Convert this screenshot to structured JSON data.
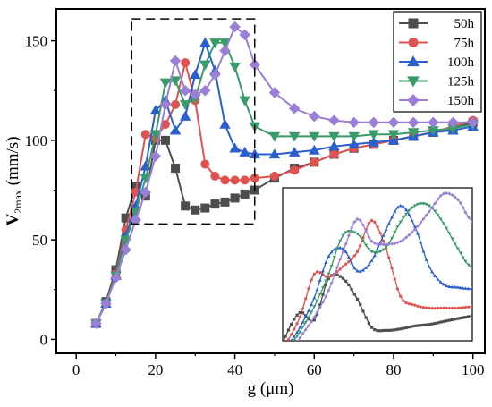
{
  "chart_data": {
    "type": "line",
    "xlabel": "g (μm)",
    "ylabel_main": "V",
    "ylabel_sub": "2max",
    "ylabel_unit": " (mm/s)",
    "xlim": [
      -5,
      103
    ],
    "ylim": [
      -7,
      166
    ],
    "xticks": [
      0,
      20,
      40,
      60,
      80,
      100
    ],
    "yticks": [
      0,
      50,
      100,
      150
    ],
    "grid": false,
    "legend_position": "top-right",
    "series": [
      {
        "name": "50h",
        "color": "#4d4d4d",
        "marker": "square",
        "points": [
          [
            5,
            8
          ],
          [
            7.5,
            19
          ],
          [
            10,
            35
          ],
          [
            12.5,
            61
          ],
          [
            15,
            77
          ],
          [
            17.5,
            72
          ],
          [
            20,
            100
          ],
          [
            22.5,
            100
          ],
          [
            25,
            86
          ],
          [
            27.5,
            67
          ],
          [
            30,
            65
          ],
          [
            32.5,
            66
          ],
          [
            35,
            68
          ],
          [
            37.5,
            69
          ],
          [
            40,
            71
          ],
          [
            42.5,
            73
          ],
          [
            45,
            75
          ],
          [
            50,
            81
          ],
          [
            55,
            86
          ],
          [
            60,
            89
          ],
          [
            65,
            93
          ],
          [
            70,
            96
          ],
          [
            75,
            98
          ],
          [
            80,
            100
          ],
          [
            85,
            102
          ],
          [
            90,
            104
          ],
          [
            95,
            106
          ],
          [
            100,
            109
          ]
        ]
      },
      {
        "name": "75h",
        "color": "#e0524f",
        "marker": "circle",
        "points": [
          [
            5,
            8
          ],
          [
            7.5,
            18
          ],
          [
            10,
            33
          ],
          [
            12.5,
            55
          ],
          [
            15,
            74
          ],
          [
            17.5,
            103
          ],
          [
            20,
            101
          ],
          [
            22.5,
            108
          ],
          [
            25,
            118
          ],
          [
            27.5,
            139
          ],
          [
            30,
            120
          ],
          [
            32.5,
            88
          ],
          [
            35,
            82
          ],
          [
            37.5,
            80
          ],
          [
            40,
            80
          ],
          [
            42.5,
            80
          ],
          [
            45,
            81
          ],
          [
            50,
            82
          ],
          [
            55,
            85
          ],
          [
            60,
            89
          ],
          [
            65,
            93
          ],
          [
            70,
            96
          ],
          [
            75,
            98
          ],
          [
            80,
            100
          ],
          [
            85,
            102
          ],
          [
            90,
            104
          ],
          [
            95,
            107
          ],
          [
            100,
            110
          ]
        ]
      },
      {
        "name": "100h",
        "color": "#2b5fcf",
        "marker": "triangle-up",
        "points": [
          [
            5,
            8
          ],
          [
            7.5,
            18
          ],
          [
            10,
            32
          ],
          [
            12.5,
            52
          ],
          [
            15,
            67
          ],
          [
            17.5,
            87
          ],
          [
            20,
            115
          ],
          [
            22.5,
            120
          ],
          [
            25,
            105
          ],
          [
            27.5,
            112
          ],
          [
            30,
            133
          ],
          [
            32.5,
            149
          ],
          [
            35,
            135
          ],
          [
            37.5,
            108
          ],
          [
            40,
            96
          ],
          [
            42.5,
            94
          ],
          [
            45,
            93
          ],
          [
            50,
            93
          ],
          [
            55,
            94
          ],
          [
            60,
            95
          ],
          [
            65,
            97
          ],
          [
            70,
            98
          ],
          [
            75,
            99
          ],
          [
            80,
            100
          ],
          [
            85,
            102
          ],
          [
            90,
            104
          ],
          [
            95,
            105
          ],
          [
            100,
            107
          ]
        ]
      },
      {
        "name": "125h",
        "color": "#3a9b6a",
        "marker": "triangle-down",
        "points": [
          [
            5,
            8
          ],
          [
            7.5,
            18
          ],
          [
            10,
            32
          ],
          [
            12.5,
            50
          ],
          [
            15,
            64
          ],
          [
            17.5,
            81
          ],
          [
            20,
            103
          ],
          [
            22.5,
            129
          ],
          [
            25,
            130
          ],
          [
            27.5,
            118
          ],
          [
            30,
            121
          ],
          [
            32.5,
            138
          ],
          [
            35,
            149
          ],
          [
            37.5,
            149
          ],
          [
            40,
            137
          ],
          [
            42.5,
            120
          ],
          [
            45,
            107
          ],
          [
            50,
            102
          ],
          [
            55,
            102
          ],
          [
            60,
            102
          ],
          [
            65,
            102
          ],
          [
            70,
            102
          ],
          [
            75,
            103
          ],
          [
            80,
            103
          ],
          [
            85,
            104
          ],
          [
            90,
            105
          ],
          [
            95,
            106
          ],
          [
            100,
            108
          ]
        ]
      },
      {
        "name": "150h",
        "color": "#9b7fd6",
        "marker": "diamond",
        "points": [
          [
            5,
            8
          ],
          [
            7.5,
            18
          ],
          [
            10,
            31
          ],
          [
            12.5,
            45
          ],
          [
            15,
            60
          ],
          [
            17.5,
            74
          ],
          [
            20,
            92
          ],
          [
            22.5,
            118
          ],
          [
            25,
            140
          ],
          [
            27.5,
            125
          ],
          [
            30,
            123
          ],
          [
            32.5,
            125
          ],
          [
            35,
            133
          ],
          [
            37.5,
            145
          ],
          [
            40,
            157
          ],
          [
            42.5,
            153
          ],
          [
            45,
            138
          ],
          [
            50,
            124
          ],
          [
            55,
            116
          ],
          [
            60,
            112
          ],
          [
            65,
            110
          ],
          [
            70,
            109
          ],
          [
            75,
            109
          ],
          [
            80,
            109
          ],
          [
            85,
            109
          ],
          [
            90,
            109
          ],
          [
            95,
            109
          ],
          [
            100,
            109
          ]
        ]
      }
    ]
  }
}
